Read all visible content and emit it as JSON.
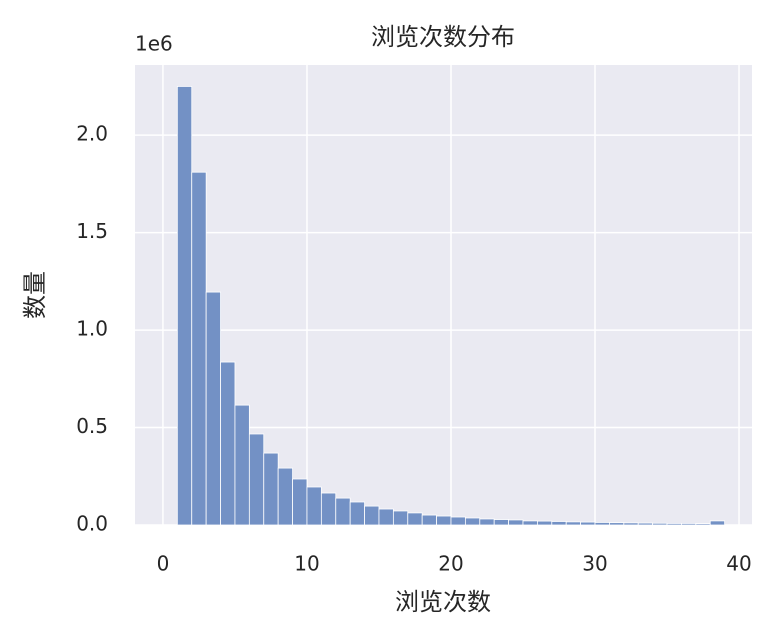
{
  "chart_data": {
    "type": "histogram",
    "title": "浏览次数分布",
    "xlabel": "浏览次数",
    "ylabel": "数量",
    "y_offset_label": "1e6",
    "bins": [
      1,
      2,
      3,
      4,
      5,
      6,
      7,
      8,
      9,
      10,
      11,
      12,
      13,
      14,
      15,
      16,
      17,
      18,
      19,
      20,
      21,
      22,
      23,
      24,
      25,
      26,
      27,
      28,
      29,
      30,
      31,
      32,
      33,
      34,
      35,
      36,
      37,
      38,
      39
    ],
    "values": [
      2250000,
      1810000,
      1195000,
      836000,
      615000,
      467000,
      369000,
      292000,
      236000,
      195000,
      164000,
      138000,
      118000,
      97000,
      82000,
      72000,
      62000,
      51000,
      46000,
      41000,
      36000,
      31000,
      28000,
      26000,
      21000,
      20000,
      18000,
      16000,
      15000,
      13000,
      12000,
      11000,
      10000,
      9000,
      8000,
      8000,
      7000,
      21000
    ],
    "color": "#7391c5",
    "xlim": [
      -1.94,
      40.9
    ],
    "ylim": [
      0,
      2360000
    ],
    "xticks": [
      0,
      10,
      20,
      30,
      40
    ],
    "yticks": [
      {
        "value": 0,
        "label": "0.0"
      },
      {
        "value": 500000,
        "label": "0.5"
      },
      {
        "value": 1000000,
        "label": "1.0"
      },
      {
        "value": 1500000,
        "label": "1.5"
      },
      {
        "value": 2000000,
        "label": "2.0"
      }
    ],
    "grid": true
  }
}
